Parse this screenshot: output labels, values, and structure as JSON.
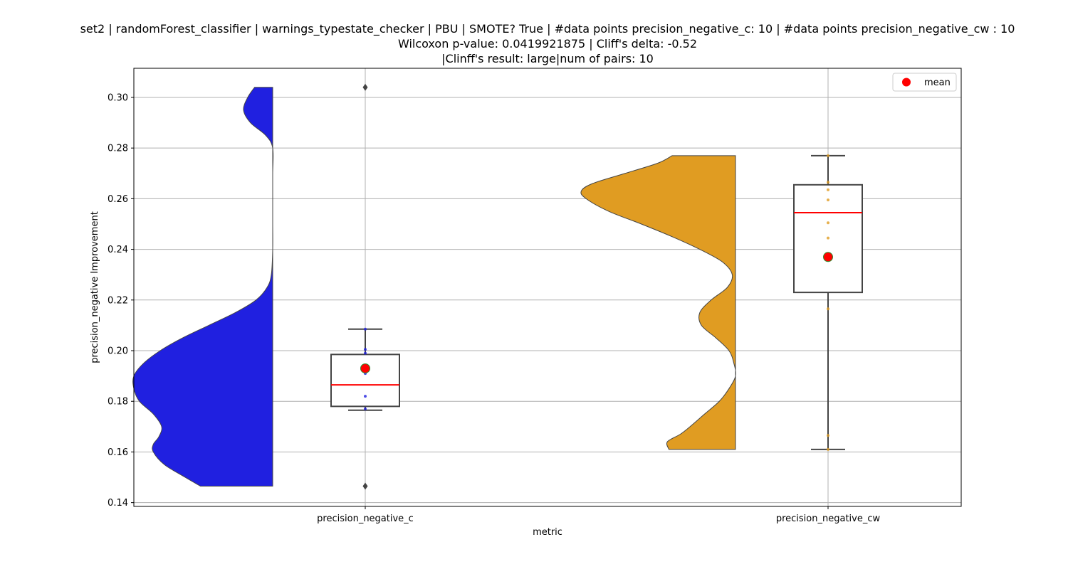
{
  "chart_data": {
    "type": "violin-box",
    "title_lines": [
      "set2 | randomForest_classifier | warnings_typestate_checker | PBU | SMOTE? True | #data points precision_negative_c: 10 | #data points precision_negative_cw : 10",
      "Wilcoxon p-value: 0.0419921875 | Cliff's delta: -0.52",
      "|Clinff's result: large|num of pairs: 10"
    ],
    "xlabel": "metric",
    "ylabel": "precision_negative Improvement",
    "ylim": [
      0.1385,
      0.3115
    ],
    "yticks": [
      "0.14",
      "0.16",
      "0.18",
      "0.20",
      "0.22",
      "0.24",
      "0.26",
      "0.28",
      "0.30"
    ],
    "grid": true,
    "legend": {
      "position": "top-right",
      "entries": [
        {
          "label": "mean",
          "color": "#ff0000"
        }
      ]
    },
    "categories": [
      "precision_negative_c",
      "precision_negative_cw"
    ],
    "series": [
      {
        "category": "precision_negative_c",
        "violin_color": "#2020e0",
        "box": {
          "whisker_low": 0.1765,
          "q1": 0.178,
          "median": 0.1865,
          "q3": 0.1985,
          "whisker_high": 0.2085
        },
        "mean": 0.193,
        "outliers": [
          0.304,
          0.1465
        ],
        "points": [
          0.2085,
          0.2005,
          0.199,
          0.191,
          0.182,
          0.177
        ],
        "violin_range": [
          0.1465,
          0.304
        ],
        "violin_density": [
          [
            0.1465,
            0.52
          ],
          [
            0.15,
            0.63
          ],
          [
            0.155,
            0.78
          ],
          [
            0.16,
            0.86
          ],
          [
            0.163,
            0.86
          ],
          [
            0.166,
            0.82
          ],
          [
            0.17,
            0.8
          ],
          [
            0.175,
            0.86
          ],
          [
            0.18,
            0.96
          ],
          [
            0.185,
            1.0
          ],
          [
            0.19,
            1.0
          ],
          [
            0.195,
            0.93
          ],
          [
            0.2,
            0.81
          ],
          [
            0.205,
            0.65
          ],
          [
            0.21,
            0.46
          ],
          [
            0.215,
            0.27
          ],
          [
            0.22,
            0.12
          ],
          [
            0.225,
            0.04
          ],
          [
            0.23,
            0.01
          ],
          [
            0.24,
            0.0
          ],
          [
            0.25,
            0.0
          ],
          [
            0.26,
            0.0
          ],
          [
            0.27,
            0.0
          ],
          [
            0.28,
            0.0
          ],
          [
            0.285,
            0.05
          ],
          [
            0.29,
            0.16
          ],
          [
            0.295,
            0.21
          ],
          [
            0.3,
            0.18
          ],
          [
            0.304,
            0.13
          ]
        ]
      },
      {
        "category": "precision_negative_cw",
        "violin_color": "#e09c22",
        "box": {
          "whisker_low": 0.161,
          "q1": 0.223,
          "median": 0.2545,
          "q3": 0.2655,
          "whisker_high": 0.277
        },
        "mean": 0.237,
        "outliers": [],
        "points": [
          0.277,
          0.2665,
          0.2635,
          0.2595,
          0.2505,
          0.2445,
          0.2165,
          0.1665,
          0.161
        ],
        "violin_range": [
          0.161,
          0.277
        ],
        "violin_density": [
          [
            0.161,
            0.41
          ],
          [
            0.164,
            0.42
          ],
          [
            0.167,
            0.34
          ],
          [
            0.17,
            0.28
          ],
          [
            0.175,
            0.19
          ],
          [
            0.18,
            0.1
          ],
          [
            0.185,
            0.04
          ],
          [
            0.19,
            0.0
          ],
          [
            0.195,
            0.01
          ],
          [
            0.2,
            0.04
          ],
          [
            0.205,
            0.12
          ],
          [
            0.21,
            0.21
          ],
          [
            0.215,
            0.22
          ],
          [
            0.22,
            0.15
          ],
          [
            0.225,
            0.05
          ],
          [
            0.23,
            0.02
          ],
          [
            0.235,
            0.08
          ],
          [
            0.24,
            0.22
          ],
          [
            0.245,
            0.39
          ],
          [
            0.25,
            0.58
          ],
          [
            0.255,
            0.78
          ],
          [
            0.26,
            0.92
          ],
          [
            0.263,
            0.95
          ],
          [
            0.266,
            0.88
          ],
          [
            0.27,
            0.68
          ],
          [
            0.274,
            0.48
          ],
          [
            0.277,
            0.39
          ]
        ]
      }
    ]
  }
}
